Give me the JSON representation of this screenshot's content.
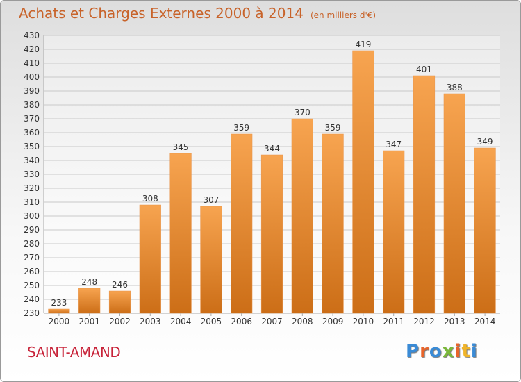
{
  "title": "Achats et Charges Externes 2000 à 2014",
  "subtitle": "(en milliers d'€)",
  "city": "SAINT-AMAND",
  "brand": "Proxiti",
  "colors": {
    "bar_top": "#f7a450",
    "bar_bottom": "#cc6e17",
    "title": "#c8632a",
    "city": "#c8243a",
    "brand_letters": [
      "#3a8bd6",
      "#e8642a",
      "#3a8bd6",
      "#7ab83a",
      "#e8642a",
      "#f0b429",
      "#3a8bd6"
    ]
  },
  "chart_data": {
    "type": "bar",
    "categories": [
      "2000",
      "2001",
      "2002",
      "2003",
      "2004",
      "2005",
      "2006",
      "2007",
      "2008",
      "2009",
      "2010",
      "2011",
      "2012",
      "2013",
      "2014"
    ],
    "values": [
      233,
      248,
      246,
      308,
      345,
      307,
      359,
      344,
      370,
      359,
      419,
      347,
      401,
      388,
      349
    ],
    "ylim": [
      230,
      430
    ],
    "yticks": [
      230,
      240,
      250,
      260,
      270,
      280,
      290,
      300,
      310,
      320,
      330,
      340,
      350,
      360,
      370,
      380,
      390,
      400,
      410,
      420,
      430
    ],
    "grid": true,
    "legend": "none"
  }
}
